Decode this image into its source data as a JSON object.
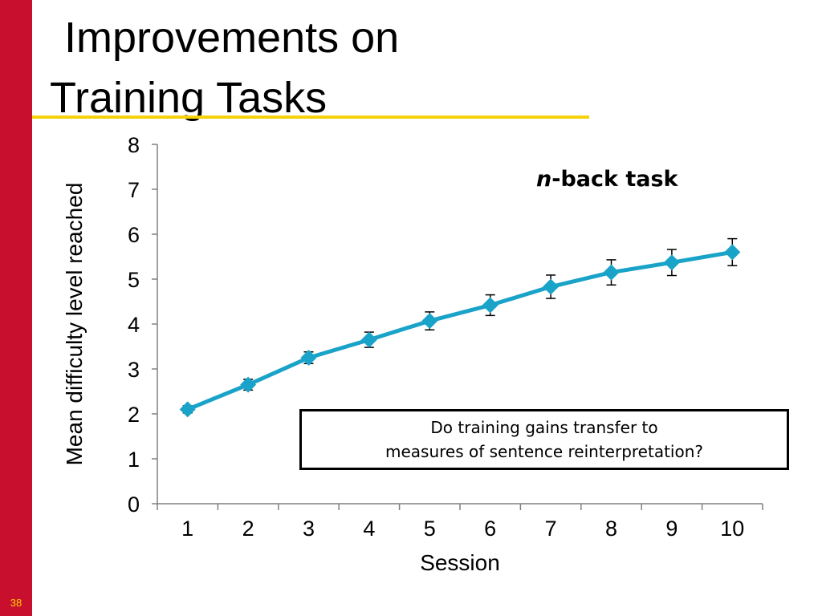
{
  "slide": {
    "title_line_1": "Improvements on",
    "title_line_2": "Training Tasks",
    "slide_number": "38",
    "colors": {
      "sidebar": "#c8102e",
      "title_rule": "#f5d20a",
      "slide_number": "#ffd200"
    }
  },
  "annotation": {
    "task_label_italic": "n",
    "task_label_rest": "-back task",
    "question_line_1": "Do training gains transfer to",
    "question_line_2": "measures of sentence reinterpretation?"
  },
  "chart_data": {
    "type": "line",
    "title": "",
    "xlabel": "Session",
    "ylabel": "Mean difficulty level reached",
    "x": [
      1,
      2,
      3,
      4,
      5,
      6,
      7,
      8,
      9,
      10
    ],
    "categories": [
      "1",
      "2",
      "3",
      "4",
      "5",
      "6",
      "7",
      "8",
      "9",
      "10"
    ],
    "ylim": [
      0,
      8
    ],
    "yticks": [
      "0",
      "1",
      "2",
      "3",
      "4",
      "5",
      "6",
      "7",
      "8"
    ],
    "grid": false,
    "series": [
      {
        "values": [
          2.1,
          2.65,
          3.25,
          3.65,
          4.07,
          4.42,
          4.83,
          5.15,
          5.37,
          5.6
        ],
        "error": [
          0.08,
          0.12,
          0.13,
          0.17,
          0.2,
          0.23,
          0.26,
          0.28,
          0.29,
          0.3
        ],
        "color": "#1aa3c8",
        "marker": "diamond"
      }
    ]
  }
}
